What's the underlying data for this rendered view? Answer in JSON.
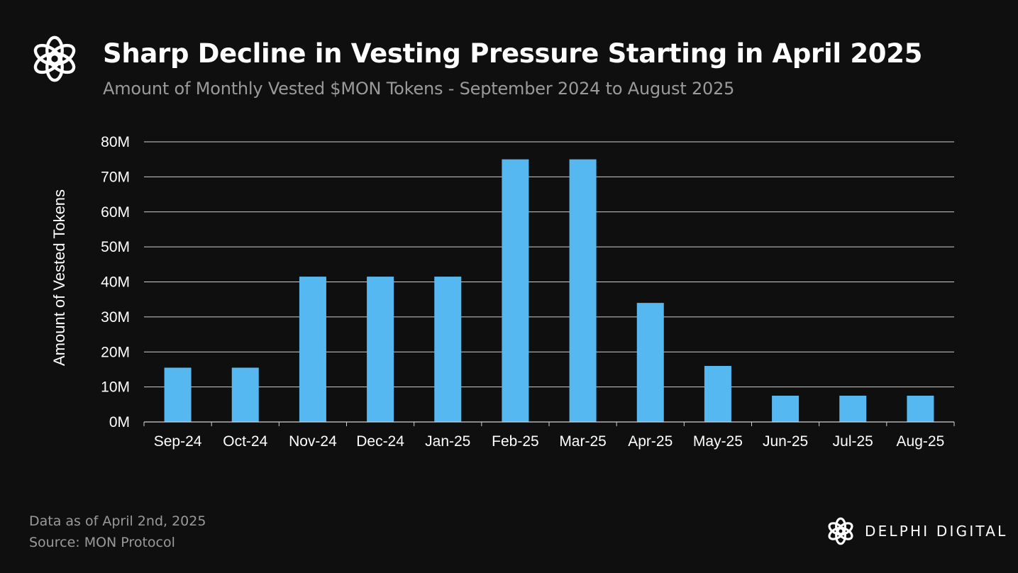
{
  "header": {
    "logo_icon": "delphi-knot-logo",
    "title": "Sharp Decline in Vesting Pressure Starting in April 2025",
    "subtitle": "Amount of Monthly Vested $MON Tokens - September 2024 to August 2025"
  },
  "chart_data": {
    "type": "bar",
    "title": "Sharp Decline in Vesting Pressure Starting in April 2025",
    "subtitle": "Amount of Monthly Vested $MON Tokens - September 2024 to August 2025",
    "xlabel": "",
    "ylabel": "Amount of Vested Tokens",
    "categories": [
      "Sep-24",
      "Oct-24",
      "Nov-24",
      "Dec-24",
      "Jan-25",
      "Feb-25",
      "Mar-25",
      "Apr-25",
      "May-25",
      "Jun-25",
      "Jul-25",
      "Aug-25"
    ],
    "values": [
      15.5,
      15.5,
      41.5,
      41.5,
      41.5,
      75,
      75,
      34,
      16,
      7.5,
      7.5,
      7.5
    ],
    "unit": "M",
    "ylim": [
      0,
      80
    ],
    "yticks": [
      0,
      10,
      20,
      30,
      40,
      50,
      60,
      70,
      80
    ],
    "ytick_labels": [
      "0M",
      "10M",
      "20M",
      "30M",
      "40M",
      "50M",
      "60M",
      "70M",
      "80M"
    ],
    "grid": true,
    "legend": "none",
    "bar_color": "#56b8f0"
  },
  "footer": {
    "data_note": "Data as of April 2nd, 2025",
    "source": "Source: MON Protocol",
    "brand_icon": "delphi-knot-logo",
    "brand_name": "DELPHI DIGITAL"
  },
  "colors": {
    "background": "#0f0f0f",
    "bar": "#56b8f0",
    "grid": "#cfcfcf",
    "subtitle": "#9a9a9a"
  }
}
